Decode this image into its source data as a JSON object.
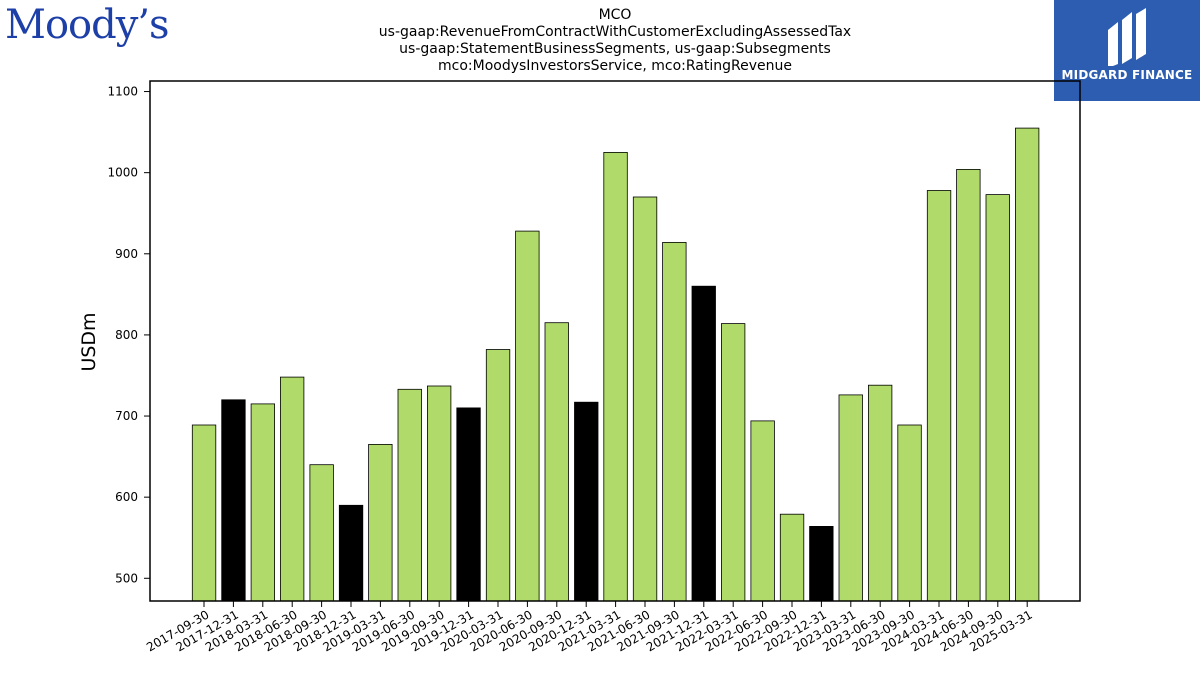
{
  "brand": {
    "left_logo": "Moody’s",
    "right_logo": "MIDGARD FINANCE"
  },
  "chart_data": {
    "type": "bar",
    "title_lines": [
      "MCO",
      "us-gaap:RevenueFromContractWithCustomerExcludingAssessedTax",
      "us-gaap:StatementBusinessSegments, us-gaap:Subsegments",
      "mco:MoodysInvestorsService, mco:RatingRevenue"
    ],
    "ylabel": "USDm",
    "xlabel": "",
    "ylim": [
      472,
      1113
    ],
    "yticks": [
      500,
      600,
      700,
      800,
      900,
      1000,
      1100
    ],
    "categories": [
      "2017-09-30",
      "2017-12-31",
      "2018-03-31",
      "2018-06-30",
      "2018-09-30",
      "2018-12-31",
      "2019-03-31",
      "2019-06-30",
      "2019-09-30",
      "2019-12-31",
      "2020-03-31",
      "2020-06-30",
      "2020-09-30",
      "2020-12-31",
      "2021-03-31",
      "2021-06-30",
      "2021-09-30",
      "2021-12-31",
      "2022-03-31",
      "2022-06-30",
      "2022-09-30",
      "2022-12-31",
      "2023-03-31",
      "2023-06-30",
      "2023-09-30",
      "2024-03-31",
      "2024-06-30",
      "2024-09-30",
      "2025-03-31"
    ],
    "values": [
      689,
      720,
      715,
      748,
      640,
      590,
      665,
      733,
      737,
      710,
      782,
      928,
      815,
      717,
      1025,
      970,
      914,
      860,
      814,
      694,
      579,
      564,
      726,
      738,
      689,
      978,
      1004,
      973,
      1055
    ],
    "colors": {
      "quarter": "#b0db6a",
      "year_end": "#000000",
      "edge": "#000000"
    },
    "q4_categories": [
      "2017-12-31",
      "2018-12-31",
      "2019-12-31",
      "2020-12-31",
      "2021-12-31",
      "2022-12-31"
    ],
    "grid": false,
    "legend": "none"
  }
}
